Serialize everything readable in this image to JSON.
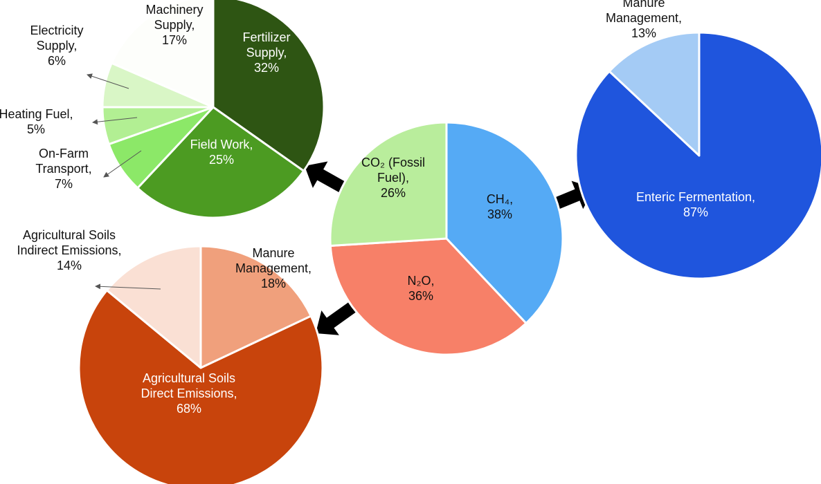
{
  "chart_data": [
    {
      "type": "pie",
      "id": "main",
      "slices": [
        {
          "label_lines": [
            "CH₄,",
            "38%"
          ],
          "value": 38,
          "color": "#55aaf5"
        },
        {
          "label_lines": [
            "N₂O,",
            "36%"
          ],
          "value": 36,
          "color": "#f78068"
        },
        {
          "label_lines": [
            "CO₂ (Fossil",
            "Fuel),",
            "26%"
          ],
          "value": 26,
          "color": "#b9ed9c"
        }
      ]
    },
    {
      "type": "pie",
      "id": "co2-breakdown",
      "slices": [
        {
          "label_lines": [
            "Fertilizer",
            "Supply,",
            "32%"
          ],
          "value": 32,
          "color": "#2e5513"
        },
        {
          "label_lines": [
            "Field Work,",
            "25%"
          ],
          "value": 25,
          "color": "#4c9b22"
        },
        {
          "label_lines": [
            "On-Farm",
            "Transport,",
            "7%"
          ],
          "value": 7,
          "color": "#8ce868"
        },
        {
          "label_lines": [
            "Heating Fuel,",
            "5%"
          ],
          "value": 5,
          "color": "#b2ef93"
        },
        {
          "label_lines": [
            "Electricity",
            "Supply,",
            "6%"
          ],
          "value": 6,
          "color": "#d9f6c6"
        },
        {
          "label_lines": [
            "Machinery",
            "Supply,",
            "17%"
          ],
          "value": 17,
          "color": "#fdfefb"
        }
      ]
    },
    {
      "type": "pie",
      "id": "ch4-breakdown",
      "slices": [
        {
          "label_lines": [
            "Enteric Fermentation,",
            "87%"
          ],
          "value": 87,
          "color": "#1f55dd"
        },
        {
          "label_lines": [
            "Manure",
            "Management,",
            "13%"
          ],
          "value": 13,
          "color": "#a4cbf5"
        }
      ]
    },
    {
      "type": "pie",
      "id": "n2o-breakdown",
      "slices": [
        {
          "label_lines": [
            "Manure",
            "Management,",
            "18%"
          ],
          "value": 18,
          "color": "#f0a07c"
        },
        {
          "label_lines": [
            "Agricultural Soils",
            "Direct Emissions,",
            "68%"
          ],
          "value": 68,
          "color": "#c8440c"
        },
        {
          "label_lines": [
            "Agricultural Soils",
            "Indirect Emissions,",
            "14%"
          ],
          "value": 14,
          "color": "#fae0d4"
        }
      ]
    }
  ]
}
